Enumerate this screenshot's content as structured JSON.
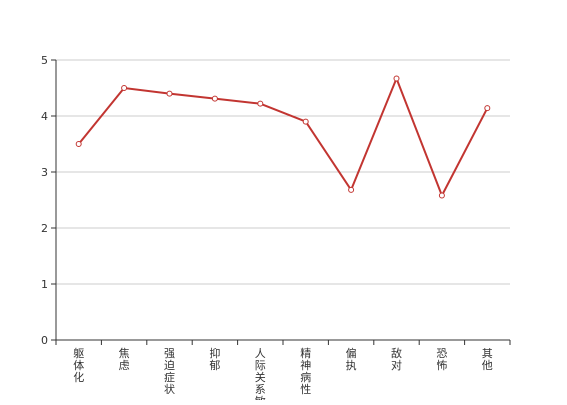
{
  "chart_data": {
    "type": "line",
    "categories": [
      "躯体化",
      "焦虑",
      "强迫症状",
      "抑郁",
      "人际关系敏感",
      "精神病性",
      "偏执",
      "敌对",
      "恐怖",
      "其他"
    ],
    "series": [
      {
        "values": [
          3.5,
          4.5,
          4.4,
          4.31,
          4.22,
          3.9,
          2.68,
          4.67,
          2.58,
          4.14
        ]
      }
    ],
    "yticks": [
      0,
      1,
      2,
      3,
      4,
      5
    ],
    "ylim": [
      0,
      5
    ],
    "grid": true,
    "colors": {
      "line": "#c23531",
      "grid": "#cccccc",
      "axis": "#333333",
      "point_fill": "#ffffff"
    }
  }
}
